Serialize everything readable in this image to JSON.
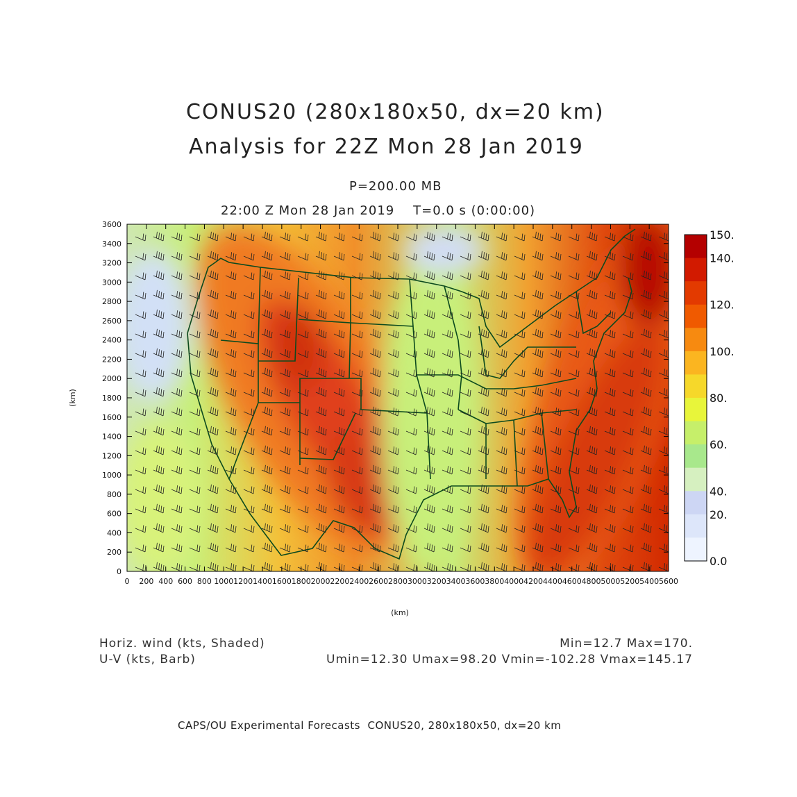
{
  "title": {
    "line1": "CONUS20 (280x180x50, dx=20 km)",
    "line2": "Analysis for 22Z Mon 28 Jan 2019"
  },
  "level": "P=200.00 MB",
  "valid_time": "22:00 Z Mon 28 Jan 2019    T=0.0 s (0:00:00)",
  "axes": {
    "xlabel": "(km)",
    "ylabel": "(km)",
    "xticks": [
      "0",
      "200",
      "400",
      "600",
      "800",
      "1000",
      "1200",
      "1400",
      "1600",
      "1800",
      "2000",
      "2200",
      "2400",
      "2600",
      "2800",
      "3000",
      "3200",
      "3400",
      "3600",
      "3800",
      "4000",
      "4200",
      "4400",
      "4600",
      "4800",
      "5000",
      "5200",
      "5400",
      "5600"
    ],
    "yticks": [
      "0",
      "200",
      "400",
      "600",
      "800",
      "1000",
      "1200",
      "1400",
      "1600",
      "1800",
      "2000",
      "2200",
      "2400",
      "2600",
      "2800",
      "3000",
      "3200",
      "3400",
      "3600"
    ],
    "xlim": [
      0,
      5600
    ],
    "ylim": [
      0,
      3600
    ]
  },
  "colorbar": {
    "labels": [
      "150.",
      "140.",
      "120.",
      "100.",
      "80.",
      "60.",
      "40.",
      "20.",
      "0.0"
    ],
    "colors": [
      "#b40000",
      "#d21a00",
      "#e33a00",
      "#f05a00",
      "#f78a10",
      "#fbb520",
      "#f6d82a",
      "#e8f53a",
      "#c6ef6a",
      "#a8e88c",
      "#d6f0c0",
      "#cdd6f4",
      "#dde6fa",
      "#eef4ff"
    ]
  },
  "legend": {
    "left1": "Horiz. wind (kts, Shaded)",
    "left2": "U-V (kts, Barb)",
    "right1": "Min=12.7 Max=170.",
    "right2": "Umin=12.30 Umax=98.20 Vmin=-102.28 Vmax=145.17"
  },
  "footer": "CAPS/OU Experimental Forecasts  CONUS20, 280x180x50, dx=20 km"
}
